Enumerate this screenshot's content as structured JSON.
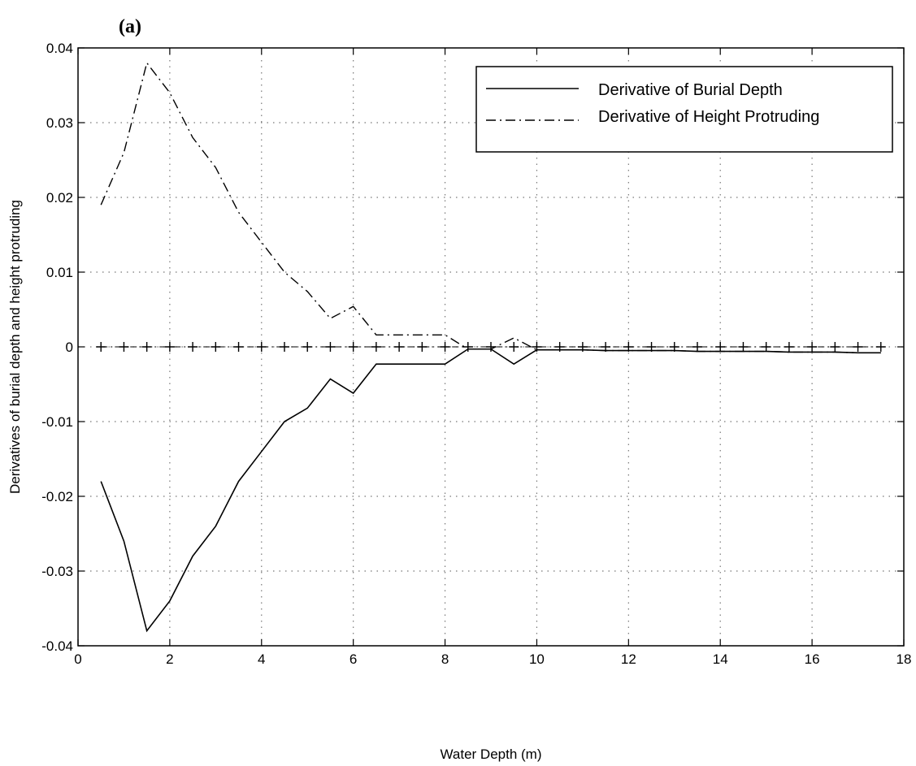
{
  "chart_data": {
    "type": "line",
    "panel_label": "(a)",
    "title": "",
    "xlabel": "Water Depth (m)",
    "ylabel": "Derivatives of burial depth and height protruding",
    "xlim": [
      0,
      18
    ],
    "ylim": [
      -0.04,
      0.04
    ],
    "x_ticks": [
      0,
      2,
      4,
      6,
      8,
      10,
      12,
      14,
      16,
      18
    ],
    "y_ticks": [
      -0.04,
      -0.03,
      -0.02,
      -0.01,
      0,
      0.01,
      0.02,
      0.03,
      0.04
    ],
    "x_tick_labels": [
      "0",
      "2",
      "4",
      "6",
      "8",
      "10",
      "12",
      "14",
      "16",
      "18"
    ],
    "y_tick_labels": [
      "-0.04",
      "-0.03",
      "-0.02",
      "-0.01",
      "0",
      "0.01",
      "0.02",
      "0.03",
      "0.04"
    ],
    "grid": true,
    "legend_position": "top-right",
    "series": [
      {
        "name": "Derivative of Burial Depth",
        "style": "solid",
        "x": [
          0.5,
          1.0,
          1.5,
          2.0,
          2.5,
          3.0,
          3.5,
          4.0,
          4.5,
          5.0,
          5.5,
          6.0,
          6.5,
          7.0,
          7.5,
          8.0,
          8.5,
          9.0,
          9.5,
          10.0,
          10.5,
          11.0,
          11.5,
          12.0,
          12.5,
          13.0,
          13.5,
          14.0,
          14.5,
          15.0,
          15.5,
          16.0,
          16.5,
          17.0,
          17.5
        ],
        "y": [
          -0.018,
          -0.026,
          -0.038,
          -0.034,
          -0.028,
          -0.024,
          -0.018,
          -0.014,
          -0.01,
          -0.0082,
          -0.0043,
          -0.0062,
          -0.0023,
          -0.0023,
          -0.0023,
          -0.0023,
          -0.0003,
          -0.0003,
          -0.0023,
          -0.0004,
          -0.0004,
          -0.0004,
          -0.0005,
          -0.0005,
          -0.0005,
          -0.0005,
          -0.0006,
          -0.0006,
          -0.0006,
          -0.0006,
          -0.0007,
          -0.0007,
          -0.0007,
          -0.0008,
          -0.0008
        ]
      },
      {
        "name": "Derivative of Height Protruding",
        "style": "dash-dot",
        "x": [
          0.5,
          1.0,
          1.5,
          2.0,
          2.5,
          3.0,
          3.5,
          4.0,
          4.5,
          5.0,
          5.5,
          6.0,
          6.5,
          7.0,
          7.5,
          8.0,
          8.5,
          9.0,
          9.5,
          10.0,
          10.5,
          11.0,
          11.5,
          12.0,
          12.5,
          13.0,
          13.5,
          14.0,
          14.5,
          15.0,
          15.5,
          16.0,
          16.5,
          17.0,
          17.5
        ],
        "y": [
          0.019,
          0.026,
          0.038,
          0.034,
          0.028,
          0.024,
          0.018,
          0.014,
          0.01,
          0.0074,
          0.0038,
          0.0054,
          0.0016,
          0.0016,
          0.0016,
          0.0016,
          -0.0003,
          -0.0003,
          0.0012,
          -0.0004,
          -0.0004,
          -0.0004,
          -0.0005,
          -0.0005,
          -0.0005,
          -0.0005,
          -0.0006,
          -0.0006,
          -0.0006,
          -0.0006,
          -0.0007,
          -0.0007,
          -0.0007,
          -0.0008,
          -0.0008
        ]
      },
      {
        "name": "",
        "style": "plus-markers",
        "x": [
          0.5,
          1.0,
          1.5,
          2.0,
          2.5,
          3.0,
          3.5,
          4.0,
          4.5,
          5.0,
          5.5,
          6.0,
          6.5,
          7.0,
          7.5,
          8.0,
          8.5,
          9.0,
          9.5,
          10.0,
          10.5,
          11.0,
          11.5,
          12.0,
          12.5,
          13.0,
          13.5,
          14.0,
          14.5,
          15.0,
          15.5,
          16.0,
          16.5,
          17.0,
          17.5
        ],
        "y": [
          0,
          0,
          0,
          0,
          0,
          0,
          0,
          0,
          0,
          0,
          0,
          0,
          0,
          0,
          0,
          0,
          0,
          0,
          0,
          0,
          0,
          0,
          0,
          0,
          0,
          0,
          0,
          0,
          0,
          0,
          0,
          0,
          0,
          0,
          0
        ]
      }
    ]
  }
}
